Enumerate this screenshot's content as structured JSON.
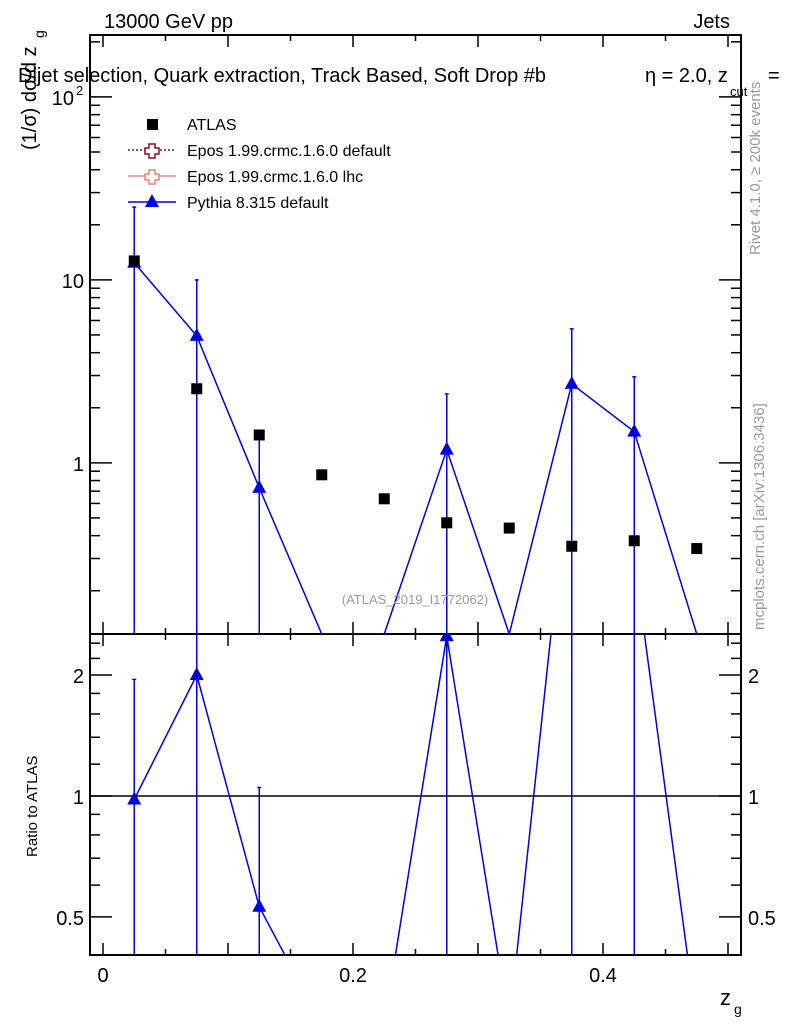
{
  "chart_data": {
    "type": "scatter",
    "header_left": "13000 GeV pp",
    "header_right": "Jets",
    "title": "Dijet selection, Quark extraction, Track Based, Soft Drop #b",
    "title_overlap": "η = 2.0, z",
    "title_sub": "cut",
    "title_end": "=",
    "ylabel": "(1/σ) dσ/d z",
    "ylabel_sub": "g",
    "xlabel": "z",
    "xlabel_sub": "g",
    "ratio_ylabel": "Ratio to ATLAS",
    "watermark": "(ATLAS_2019_I1772062)",
    "side_text_1": "Rivet 4.1.0, ≥ 200k events",
    "side_text_2": "mcplots.cern.ch [arXiv:1306.3436]",
    "yscale": "log",
    "ylim": [
      0.116,
      218
    ],
    "xlim": [
      -0.0104,
      0.5104
    ],
    "ratio_ylim": [
      0.402,
      2.53
    ],
    "ytick_labels": [
      {
        "v": 100,
        "base": "10",
        "exp": "2"
      },
      {
        "v": 10,
        "base": "10",
        "exp": ""
      },
      {
        "v": 1,
        "base": "1",
        "exp": ""
      }
    ],
    "xtick_labels": [
      {
        "v": 0,
        "label": "0"
      },
      {
        "v": 0.2,
        "label": "0.2"
      },
      {
        "v": 0.4,
        "label": "0.4"
      }
    ],
    "ratio_tick_labels": [
      {
        "v": 2,
        "label": "2"
      },
      {
        "v": 1,
        "label": "1"
      },
      {
        "v": 0.5,
        "label": "0.5"
      }
    ],
    "legend_position": "top-left",
    "legend": [
      {
        "label": "ATLAS",
        "color": "#000000",
        "marker": "square",
        "line": "none"
      },
      {
        "label": "Epos 1.99.crmc.1.6.0 default",
        "color": "#8b0a32",
        "marker": "open-cross",
        "line": "dotted"
      },
      {
        "label": "Epos 1.99.crmc.1.6.0 lhc",
        "color": "#f08080",
        "marker": "open-cross",
        "line": "solid"
      },
      {
        "label": "Pythia 8.315 default",
        "color": "#0000e0",
        "marker": "triangle",
        "line": "solid"
      }
    ],
    "x": [
      0.025,
      0.075,
      0.125,
      0.175,
      0.225,
      0.275,
      0.325,
      0.375,
      0.425,
      0.475
    ],
    "series": [
      {
        "name": "ATLAS",
        "values": [
          12.7,
          2.54,
          1.42,
          0.86,
          0.636,
          0.47,
          0.44,
          0.35,
          0.375,
          0.34
        ]
      },
      {
        "name": "Pythia 8.315 default",
        "values": [
          12.4,
          4.94,
          0.73,
          0,
          0,
          1.18,
          0,
          2.7,
          1.48,
          0
        ],
        "err_up": [
          12.6,
          5.06,
          0.74,
          0,
          0,
          1.2,
          0,
          2.7,
          1.47,
          0
        ],
        "err_down": [
          12.4,
          4.94,
          0.73,
          0,
          0,
          1.18,
          0,
          2.7,
          1.48,
          0
        ]
      }
    ],
    "ratio_series": [
      {
        "name": "Pythia 8.315 default",
        "values": [
          0.98,
          2.0,
          0.53,
          0,
          0,
          2.5,
          0,
          7.7,
          3.9,
          0
        ],
        "err_up": [
          0.97,
          0,
          0.52,
          0,
          0,
          0,
          0,
          0,
          0,
          0
        ]
      }
    ]
  }
}
